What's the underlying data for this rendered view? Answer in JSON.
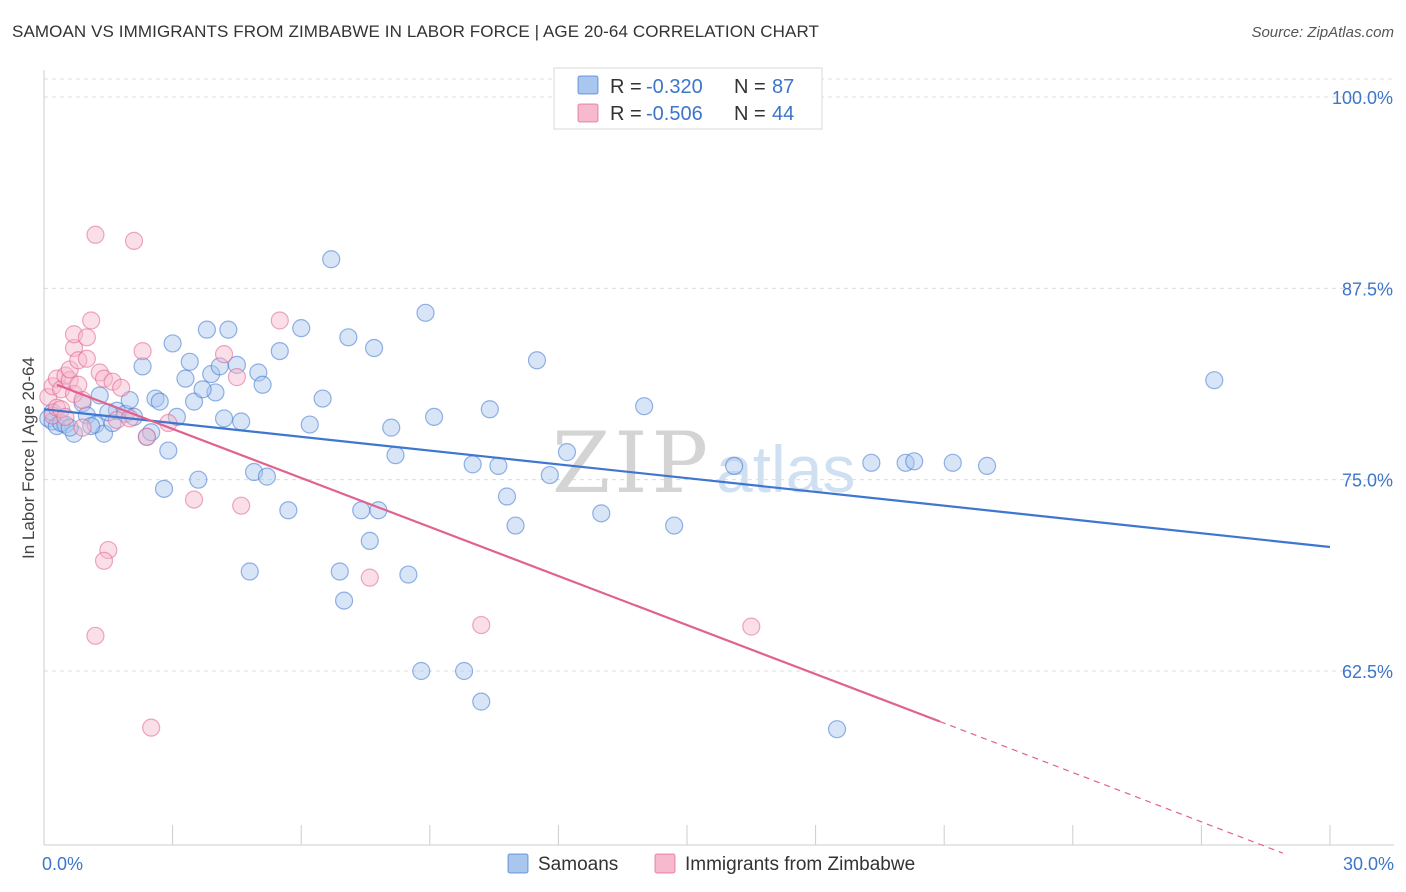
{
  "title": "SAMOAN VS IMMIGRANTS FROM ZIMBABWE IN LABOR FORCE | AGE 20-64 CORRELATION CHART",
  "source": "Source: ZipAtlas.com",
  "watermark": {
    "part1": "ZIP",
    "part2": "atlas"
  },
  "colors": {
    "blue": "#3f76cf",
    "blue_fill": "#a9c6ee",
    "pink": "#e0628f",
    "pink_fill": "#f6b9cd",
    "tick": "#3d75c9",
    "grid": "#dcdcdc"
  },
  "legend_top": [
    {
      "r_label": "R =",
      "r_value": "-0.320",
      "n_label": "N =",
      "n_value": "87"
    },
    {
      "r_label": "R =",
      "r_value": "-0.506",
      "n_label": "N =",
      "n_value": "44"
    }
  ],
  "chart_data": {
    "type": "scatter",
    "title": "SAMOAN VS IMMIGRANTS FROM ZIMBABWE IN LABOR FORCE | AGE 20-64 CORRELATION CHART",
    "xlabel": "",
    "ylabel": "In Labor Force | Age 20-64",
    "xlim": [
      0,
      30
    ],
    "ylim": [
      50,
      103
    ],
    "x_tick_labels": [
      "0.0%",
      "30.0%"
    ],
    "y_ticks": [
      62.5,
      75.0,
      87.5,
      100.0
    ],
    "y_tick_labels": [
      "62.5%",
      "75.0%",
      "87.5%",
      "100.0%"
    ],
    "grid": true,
    "legend_position": "top-center",
    "series": [
      {
        "name": "Samoans",
        "color": "#3f76cf",
        "trend": {
          "x": [
            0,
            30
          ],
          "y": [
            79.6,
            70.6
          ]
        },
        "points": [
          [
            0.1,
            79.0
          ],
          [
            0.2,
            78.8
          ],
          [
            0.2,
            79.4
          ],
          [
            0.3,
            78.5
          ],
          [
            0.4,
            78.7
          ],
          [
            0.5,
            78.6
          ],
          [
            0.7,
            78.0
          ],
          [
            0.9,
            80.0
          ],
          [
            1.0,
            79.2
          ],
          [
            1.2,
            78.6
          ],
          [
            1.3,
            80.5
          ],
          [
            1.4,
            78.0
          ],
          [
            1.6,
            78.7
          ],
          [
            1.7,
            79.5
          ],
          [
            1.9,
            79.3
          ],
          [
            2.0,
            80.2
          ],
          [
            2.1,
            79.1
          ],
          [
            2.3,
            82.4
          ],
          [
            2.4,
            77.8
          ],
          [
            2.6,
            80.3
          ],
          [
            2.7,
            80.1
          ],
          [
            2.8,
            74.4
          ],
          [
            2.9,
            76.9
          ],
          [
            3.0,
            83.9
          ],
          [
            3.1,
            79.1
          ],
          [
            3.3,
            81.6
          ],
          [
            3.4,
            82.7
          ],
          [
            3.5,
            80.1
          ],
          [
            3.6,
            75.0
          ],
          [
            3.8,
            84.8
          ],
          [
            3.9,
            81.9
          ],
          [
            4.0,
            80.7
          ],
          [
            4.1,
            82.4
          ],
          [
            4.2,
            79.0
          ],
          [
            4.3,
            84.8
          ],
          [
            4.5,
            82.5
          ],
          [
            4.6,
            78.8
          ],
          [
            4.8,
            69.0
          ],
          [
            4.9,
            75.5
          ],
          [
            5.0,
            82.0
          ],
          [
            5.1,
            81.2
          ],
          [
            5.2,
            75.2
          ],
          [
            5.5,
            83.4
          ],
          [
            5.7,
            73.0
          ],
          [
            6.0,
            84.9
          ],
          [
            6.2,
            78.6
          ],
          [
            6.5,
            80.3
          ],
          [
            6.7,
            89.4
          ],
          [
            6.9,
            69.0
          ],
          [
            7.0,
            67.1
          ],
          [
            7.1,
            84.3
          ],
          [
            7.4,
            73.0
          ],
          [
            7.6,
            71.0
          ],
          [
            7.7,
            83.6
          ],
          [
            7.8,
            73.0
          ],
          [
            8.1,
            78.4
          ],
          [
            8.2,
            76.6
          ],
          [
            8.5,
            68.8
          ],
          [
            8.8,
            62.5
          ],
          [
            8.9,
            85.9
          ],
          [
            9.1,
            79.1
          ],
          [
            9.8,
            62.5
          ],
          [
            10.0,
            76.0
          ],
          [
            10.2,
            60.5
          ],
          [
            10.4,
            79.6
          ],
          [
            10.6,
            75.9
          ],
          [
            10.8,
            73.9
          ],
          [
            11.0,
            72.0
          ],
          [
            11.5,
            82.8
          ],
          [
            11.8,
            75.3
          ],
          [
            12.2,
            76.8
          ],
          [
            13.0,
            72.8
          ],
          [
            14.0,
            79.8
          ],
          [
            14.7,
            72.0
          ],
          [
            16.1,
            75.9
          ],
          [
            18.5,
            58.7
          ],
          [
            19.3,
            76.1
          ],
          [
            20.1,
            76.1
          ],
          [
            20.3,
            76.2
          ],
          [
            21.2,
            76.1
          ],
          [
            22.0,
            75.9
          ],
          [
            27.3,
            81.5
          ],
          [
            1.1,
            78.5
          ],
          [
            1.5,
            79.4
          ],
          [
            2.5,
            78.1
          ],
          [
            3.7,
            80.9
          ],
          [
            0.6,
            78.4
          ]
        ]
      },
      {
        "name": "Immigrants from Zimbabwe",
        "color": "#e0628f",
        "trend": {
          "x": [
            0.3,
            20.9
          ],
          "y": [
            81.2,
            59.2
          ]
        },
        "trend_dashed": {
          "x": [
            20.9,
            28.9
          ],
          "y": [
            59.2,
            50.6
          ]
        },
        "points": [
          [
            0.1,
            80.4
          ],
          [
            0.2,
            81.1
          ],
          [
            0.2,
            79.2
          ],
          [
            0.3,
            79.7
          ],
          [
            0.3,
            81.6
          ],
          [
            0.4,
            80.9
          ],
          [
            0.4,
            79.6
          ],
          [
            0.5,
            81.8
          ],
          [
            0.5,
            79.1
          ],
          [
            0.6,
            81.5
          ],
          [
            0.6,
            82.2
          ],
          [
            0.7,
            80.6
          ],
          [
            0.7,
            83.6
          ],
          [
            0.7,
            84.5
          ],
          [
            0.8,
            81.2
          ],
          [
            0.8,
            82.8
          ],
          [
            0.9,
            80.2
          ],
          [
            0.9,
            78.4
          ],
          [
            1.0,
            82.9
          ],
          [
            1.0,
            84.3
          ],
          [
            1.1,
            85.4
          ],
          [
            1.2,
            91.0
          ],
          [
            1.3,
            82.0
          ],
          [
            1.4,
            81.6
          ],
          [
            1.5,
            70.4
          ],
          [
            1.6,
            81.4
          ],
          [
            1.7,
            78.9
          ],
          [
            1.8,
            81.0
          ],
          [
            2.1,
            90.6
          ],
          [
            2.3,
            83.4
          ],
          [
            2.4,
            77.8
          ],
          [
            2.5,
            58.8
          ],
          [
            2.9,
            78.7
          ],
          [
            3.5,
            73.7
          ],
          [
            4.2,
            83.2
          ],
          [
            4.5,
            81.7
          ],
          [
            4.6,
            73.3
          ],
          [
            5.5,
            85.4
          ],
          [
            7.6,
            68.6
          ],
          [
            10.2,
            65.5
          ],
          [
            16.5,
            65.4
          ],
          [
            1.4,
            69.7
          ],
          [
            1.2,
            64.8
          ],
          [
            2.0,
            79.0
          ]
        ]
      }
    ]
  }
}
